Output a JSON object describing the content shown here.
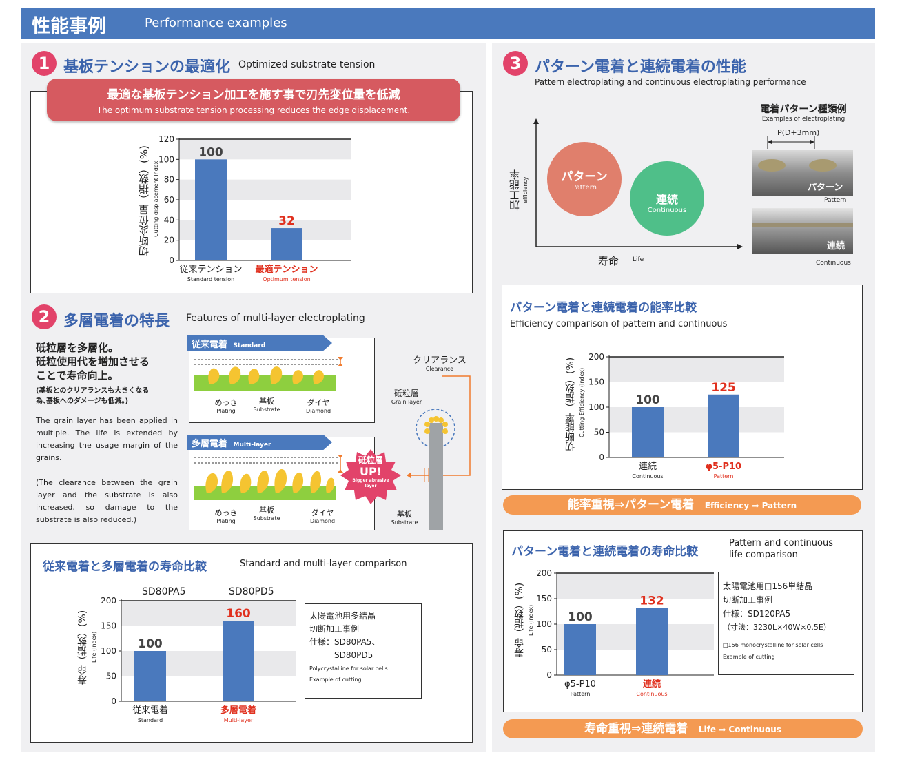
{
  "header": {
    "title_jp": "性能事例",
    "title_en": "Performance examples"
  },
  "sec1": {
    "num": "1",
    "title_jp": "基板テンションの最適化",
    "title_en": "Optimized substrate tension",
    "banner_jp": "最適な基板テンション加工を施す事で刃先変位量を低減",
    "banner_en": "The optimum substrate tension processing reduces the edge displacement.",
    "ylabel_jp": "切断変位量（指数）(%)",
    "ylabel_en": "Cutting displacement Index"
  },
  "sec2": {
    "num": "2",
    "title_jp": "多層電着の特長",
    "title_en": "Features of multi-layer electroplating",
    "lead_jp": [
      "砥粒層を多層化。",
      "砥粒使用代を増加させる",
      "ことで寿命向上。"
    ],
    "note_jp": [
      "(基板とのクリアランスも大きくなる",
      "為､基板へのダメージも低減。)"
    ],
    "text_en1": "The grain layer has been applied in multiple. The life is extended by increasing the usage margin of the grains.",
    "text_en2": "(The clearance between the grain layer and the substrate is also increased, so damage to the substrate is also reduced.)",
    "std_tag_jp": "従来電着",
    "std_tag_en": "Standard",
    "multi_tag_jp": "多層電着",
    "multi_tag_en": "Multi-layer",
    "plating_jp": "めっき",
    "plating_en": "Plating",
    "substrate_jp": "基板",
    "substrate_en": "Substrate",
    "diamond_jp": "ダイヤ",
    "diamond_en": "Diamond",
    "badge_l1": "砥粒層",
    "badge_l2": "UP!",
    "badge_en": "Bigger abrasive layer",
    "clearance_jp": "クリアランス",
    "clearance_en": "Clearance",
    "grain_jp": "砥粒層",
    "grain_en": "Grain layer",
    "kiban_jp": "基板",
    "kiban_en": "Substrate"
  },
  "sec2chart": {
    "title_jp": "従来電着と多層電着の寿命比較",
    "title_en": "Standard and multi-layer comparison",
    "ylabel_jp": "寿命（指数）(%)",
    "ylabel_en": "Life (Index)",
    "top_labels": [
      "SD80PA5",
      "SD80PD5"
    ],
    "note": [
      "太陽電池用多結晶",
      "切断加工事例",
      "仕様：SD80PA5、",
      "SD80PD5",
      "Polycrystalline for solar cells",
      "Example of cutting"
    ]
  },
  "sec3": {
    "num": "3",
    "title_jp": "パターン電着と連続電着の性能",
    "title_en": "Pattern electroplating and continuous electroplating performance",
    "y_jp": "加工能率",
    "y_en": "efficiency",
    "x_jp": "寿命",
    "x_en": "Life",
    "pat_jp": "パターン",
    "pat_en": "Pattern",
    "con_jp": "連続",
    "con_en": "Continuous",
    "ex_title_jp": "電着パターン種類例",
    "ex_title_en": "Examples of electroplating",
    "pitch": "P(D+3mm)",
    "photo1_jp": "パターン",
    "photo1_en": "Pattern",
    "photo2_jp": "連続",
    "photo2_en": "Continuous"
  },
  "eff": {
    "title_jp": "パターン電着と連続電着の能率比較",
    "title_en": "Efficiency comparison of pattern and continuous",
    "ylabel_jp": "切断能率（指数）(%)",
    "ylabel_en": "Cutting Efficiency (Index)",
    "bar_jp": "能率重視⇒パターン電着",
    "bar_en": "Efficiency ⇒ Pattern"
  },
  "life": {
    "title_jp": "パターン電着と連続電着の寿命比較",
    "title_en1": "Pattern and continuous",
    "title_en2": "life comparison",
    "ylabel_jp": "寿命（指数）(%)",
    "ylabel_en": "Life (Index)",
    "note": [
      "太陽電池用□156単結晶",
      "切断加工事例",
      "仕様：SD120PA5",
      "（寸法：3230L×40W×0.5E）",
      "□156 monocrystalline for solar cells",
      "Example of cutting"
    ],
    "bar_jp": "寿命重視⇒連続電着",
    "bar_en": "Life ⇒ Continuous"
  },
  "chart_data": [
    {
      "type": "bar",
      "categories": [
        "従来テンション",
        "最適テンション"
      ],
      "sublabels": [
        "Standard tension",
        "Optimum tension"
      ],
      "values": [
        100,
        32
      ],
      "ylim": [
        0,
        120
      ],
      "yticks": [
        0,
        20,
        40,
        60,
        80,
        100,
        120
      ],
      "highlight_color": "#e0301e",
      "bar_color": "#4a79bd"
    },
    {
      "type": "bar",
      "categories": [
        "従来電着",
        "多層電着"
      ],
      "sublabels": [
        "Standard",
        "Multi-layer"
      ],
      "values": [
        100,
        160
      ],
      "ylim": [
        0,
        200
      ],
      "yticks": [
        0,
        50,
        100,
        150,
        200
      ],
      "highlight_color": "#e0301e",
      "bar_color": "#4a79bd"
    },
    {
      "type": "bar",
      "categories": [
        "連続",
        "φ5-P10"
      ],
      "sublabels": [
        "Continuous",
        "Pattern"
      ],
      "values": [
        100,
        125
      ],
      "ylim": [
        0,
        200
      ],
      "yticks": [
        0,
        50,
        100,
        150,
        200
      ],
      "highlight_color": "#e0301e",
      "bar_color": "#4a79bd"
    },
    {
      "type": "bar",
      "categories": [
        "φ5-P10",
        "連続"
      ],
      "sublabels": [
        "Pattern",
        "Continuous"
      ],
      "values": [
        100,
        132
      ],
      "ylim": [
        0,
        200
      ],
      "yticks": [
        0,
        50,
        100,
        150,
        200
      ],
      "highlight_color": "#e0301e",
      "bar_color": "#4a79bd"
    }
  ]
}
